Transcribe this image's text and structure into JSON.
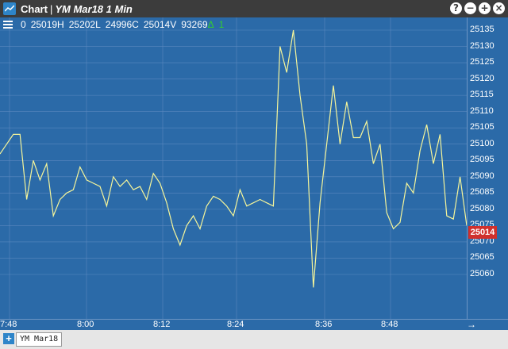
{
  "window": {
    "title_app": "Chart",
    "title_sep": "|",
    "title_symbol": "YM Mar18 1 Min",
    "controls": [
      "?",
      "−",
      "+",
      "×"
    ]
  },
  "header": {
    "open": "0",
    "high": "25019H",
    "low": "25202L",
    "close": "24996C",
    "volume": "25014V",
    "other": "93269",
    "change_symbol": "Δ",
    "change": "1"
  },
  "axis": {
    "y_ticks": [
      "25135",
      "25130",
      "25125",
      "25120",
      "25115",
      "25110",
      "25105",
      "25100",
      "25095",
      "25090",
      "25085",
      "25080",
      "25075",
      "25070",
      "25065",
      "25060"
    ],
    "x_ticks": [
      "7:48",
      "8:00",
      "8:12",
      "8:24",
      "8:36",
      "8:48"
    ],
    "current_price": "25014",
    "scroll_icon": "arrow-right-icon"
  },
  "tabs": {
    "add_label": "+",
    "items": [
      "YM Mar18"
    ]
  },
  "colors": {
    "background": "#2b6aa8",
    "line": "#f5f59a",
    "price_tag": "#d0302c",
    "change": "#33cc33"
  },
  "chart_data": {
    "type": "line",
    "x_label": "",
    "y_label": "",
    "ylim": [
      25055,
      25137
    ],
    "series": [
      {
        "values": [
          25097,
          25100,
          25103,
          25103,
          25083,
          25095,
          25089,
          25094,
          25078,
          25083,
          25085,
          25086,
          25093,
          25089,
          25088,
          25087,
          25081,
          25090,
          25087,
          25089,
          25086,
          25087,
          25083,
          25091,
          25088,
          25082,
          25074,
          25069,
          25075,
          25078,
          25074,
          25081,
          25084,
          25083,
          25081,
          25078,
          25086,
          25081,
          25082,
          25083,
          25082,
          25081,
          25130,
          25122,
          25135,
          25115,
          25100,
          25056,
          25082,
          25100,
          25118,
          25100,
          25113,
          25102,
          25102,
          25107,
          25094,
          25100,
          25079,
          25074,
          25076,
          25088,
          25085,
          25098,
          25106,
          25094,
          25103,
          25078,
          25077,
          25090,
          25075
        ]
      }
    ]
  }
}
